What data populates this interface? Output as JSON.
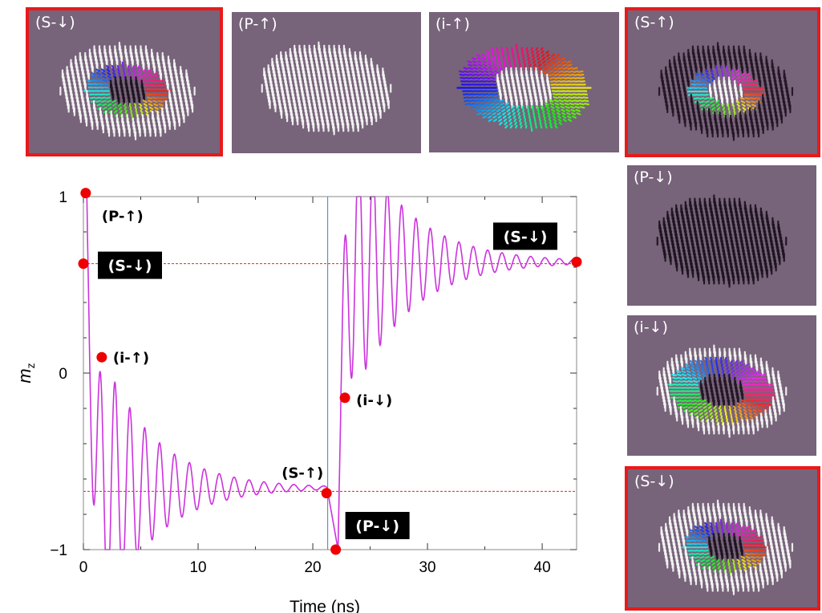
{
  "colors": {
    "panel_bg": "#77637a",
    "highlight_border": "#e8191a",
    "curve": "#cc33dd",
    "marker": "#ee0000",
    "reference_line": "#ee2222",
    "switch_line": "#4a7fb0"
  },
  "panels": [
    {
      "label": "(S-↓)",
      "state": "skyrmion-down",
      "highlighted": true
    },
    {
      "label": "(P-↑)",
      "state": "polarized-up",
      "highlighted": false
    },
    {
      "label": "(i-↑)",
      "state": "intermediate-up",
      "highlighted": false
    },
    {
      "label": "(S-↑)",
      "state": "skyrmion-up",
      "highlighted": true
    },
    {
      "label": "(P-↓)",
      "state": "polarized-down",
      "highlighted": false
    },
    {
      "label": "(i-↓)",
      "state": "intermediate-down",
      "highlighted": false
    },
    {
      "label": "(S-↓)",
      "state": "skyrmion-down",
      "highlighted": true
    }
  ],
  "chart_data": {
    "type": "line",
    "xlabel": "Time (ns)",
    "ylabel_main": "m",
    "ylabel_sub": "z",
    "xlim": [
      0,
      43
    ],
    "ylim": [
      -1,
      1
    ],
    "xticks": [
      0,
      10,
      20,
      30,
      40
    ],
    "yticks": [
      1,
      0,
      -1
    ],
    "ytick_labels": [
      "1",
      "0",
      "−1"
    ],
    "reference_levels": [
      0.62,
      -0.67
    ],
    "switch_time": 21.3,
    "series": {
      "stage1": {
        "x0": 0.3,
        "x_end": 21.3,
        "start": 1.0,
        "target": -0.65,
        "amplitude": 0.7,
        "period": 1.3,
        "tau": 4.5,
        "delay": 1.8
      },
      "stage2": {
        "x0": 22.2,
        "x_end": 43.0,
        "start": -1.0,
        "target": 0.63,
        "amplitude": 0.7,
        "period": 1.25,
        "tau": 4.8,
        "delay": 1.8
      }
    },
    "markers": [
      {
        "label": "(P-↑)",
        "x": 0.2,
        "y": 1.02,
        "boxed": false
      },
      {
        "label": "(S-↓)",
        "x": 0.0,
        "y": 0.62,
        "boxed": true
      },
      {
        "label": "(i-↑)",
        "x": 1.6,
        "y": 0.09,
        "boxed": false
      },
      {
        "label": "(S-↑)",
        "x": 21.2,
        "y": -0.68,
        "boxed": false
      },
      {
        "label": "(P-↓)",
        "x": 22.0,
        "y": -1.0,
        "boxed": true
      },
      {
        "label": "(i-↓)",
        "x": 22.8,
        "y": -0.14,
        "boxed": false
      },
      {
        "label": "(S-↓)",
        "x": 43.0,
        "y": 0.63,
        "boxed": true
      }
    ]
  }
}
